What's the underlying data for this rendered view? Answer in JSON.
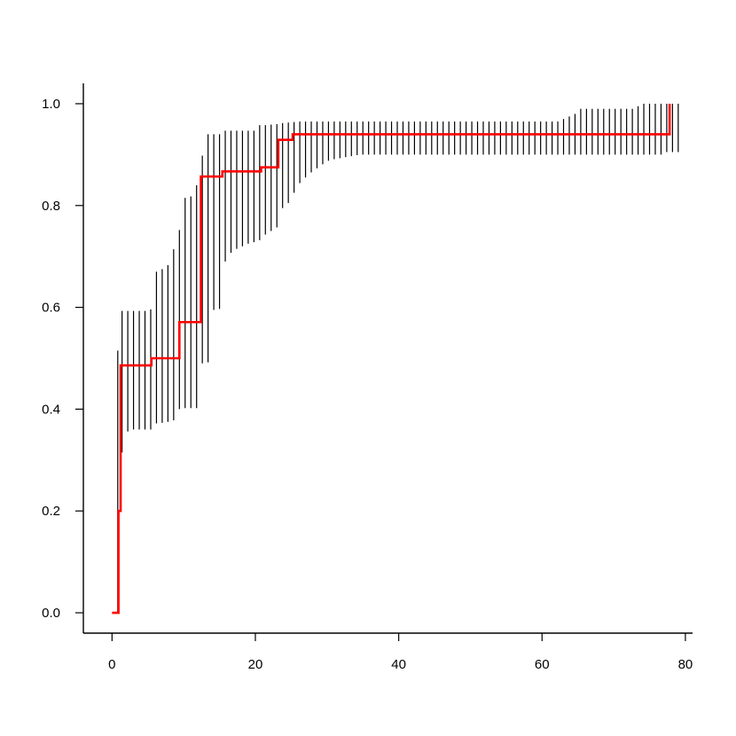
{
  "chart_data": {
    "type": "line",
    "title": "",
    "xlabel": "",
    "ylabel": "",
    "xlim": [
      -4,
      81
    ],
    "ylim": [
      -0.04,
      1.04
    ],
    "grid": false,
    "legend": "none",
    "x_ticks": [
      {
        "value": 0,
        "label": "0"
      },
      {
        "value": 20,
        "label": "20"
      },
      {
        "value": 40,
        "label": "40"
      },
      {
        "value": 60,
        "label": "60"
      },
      {
        "value": 80,
        "label": "80"
      }
    ],
    "y_ticks": [
      {
        "value": 0,
        "label": "0.0"
      },
      {
        "value": 0.2,
        "label": "0.2"
      },
      {
        "value": 0.4,
        "label": "0.4"
      },
      {
        "value": 0.6,
        "label": "0.6"
      },
      {
        "value": 0.8,
        "label": "0.8"
      },
      {
        "value": 1.0,
        "label": "1.0"
      }
    ],
    "step_line": {
      "color": "#ff0000",
      "x": [
        0,
        0.9,
        1.2,
        5.5,
        9.4,
        12.4,
        15.4,
        20.8,
        23.2,
        25.2,
        77.8
      ],
      "y": [
        0.0,
        0.2,
        0.486,
        0.5,
        0.571,
        0.857,
        0.867,
        0.875,
        0.929,
        0.94,
        1.0
      ],
      "x_end": 77.8
    },
    "intervals": {
      "color": "#000000",
      "lower": [
        [
          0.8,
          0.0
        ],
        [
          1.4,
          0.315
        ],
        [
          2.2,
          0.356
        ],
        [
          3.0,
          0.36
        ],
        [
          3.8,
          0.36
        ],
        [
          4.6,
          0.36
        ],
        [
          5.4,
          0.36
        ],
        [
          6.2,
          0.372
        ],
        [
          7.0,
          0.373
        ],
        [
          7.8,
          0.375
        ],
        [
          8.6,
          0.378
        ],
        [
          9.4,
          0.4
        ],
        [
          10.2,
          0.402
        ],
        [
          11.0,
          0.402
        ],
        [
          11.8,
          0.402
        ],
        [
          12.6,
          0.49
        ],
        [
          13.4,
          0.492
        ],
        [
          14.2,
          0.595
        ],
        [
          15.0,
          0.597
        ],
        [
          15.8,
          0.69
        ],
        [
          16.6,
          0.707
        ],
        [
          17.4,
          0.715
        ],
        [
          18.2,
          0.72
        ],
        [
          19.0,
          0.725
        ],
        [
          19.8,
          0.728
        ],
        [
          20.6,
          0.732
        ],
        [
          21.4,
          0.743
        ],
        [
          22.2,
          0.75
        ],
        [
          23.0,
          0.757
        ],
        [
          23.8,
          0.795
        ],
        [
          24.6,
          0.805
        ],
        [
          25.4,
          0.825
        ],
        [
          26.2,
          0.844
        ],
        [
          27.0,
          0.855
        ],
        [
          27.8,
          0.865
        ],
        [
          28.6,
          0.873
        ],
        [
          29.4,
          0.881
        ],
        [
          30.2,
          0.888
        ],
        [
          31.0,
          0.891
        ],
        [
          31.8,
          0.893
        ],
        [
          32.6,
          0.895
        ],
        [
          33.4,
          0.897
        ],
        [
          34.2,
          0.899
        ],
        [
          35.0,
          0.9
        ],
        [
          35.8,
          0.9
        ],
        [
          36.6,
          0.9
        ],
        [
          37.4,
          0.9
        ],
        [
          38.2,
          0.9
        ],
        [
          39.0,
          0.9
        ],
        [
          39.8,
          0.9
        ],
        [
          40.6,
          0.9
        ],
        [
          41.4,
          0.9
        ],
        [
          42.2,
          0.9
        ],
        [
          43.0,
          0.9
        ],
        [
          43.8,
          0.9
        ],
        [
          44.6,
          0.9
        ],
        [
          45.4,
          0.9
        ],
        [
          46.2,
          0.9
        ],
        [
          47.0,
          0.9
        ],
        [
          47.8,
          0.9
        ],
        [
          48.6,
          0.9
        ],
        [
          49.4,
          0.9
        ],
        [
          50.2,
          0.9
        ],
        [
          51.0,
          0.9
        ],
        [
          51.8,
          0.9
        ],
        [
          52.6,
          0.9
        ],
        [
          53.4,
          0.9
        ],
        [
          54.2,
          0.9
        ],
        [
          55.0,
          0.9
        ],
        [
          55.8,
          0.9
        ],
        [
          56.6,
          0.9
        ],
        [
          57.4,
          0.9
        ],
        [
          58.2,
          0.9
        ],
        [
          59.0,
          0.9
        ],
        [
          59.8,
          0.9
        ],
        [
          60.6,
          0.9
        ],
        [
          61.4,
          0.9
        ],
        [
          62.2,
          0.9
        ],
        [
          63.0,
          0.9
        ],
        [
          63.8,
          0.9
        ],
        [
          64.6,
          0.9
        ],
        [
          65.4,
          0.9
        ],
        [
          66.2,
          0.9
        ],
        [
          67.0,
          0.9
        ],
        [
          67.8,
          0.9
        ],
        [
          68.6,
          0.9
        ],
        [
          69.4,
          0.9
        ],
        [
          70.2,
          0.9
        ],
        [
          71.0,
          0.9
        ],
        [
          71.8,
          0.9
        ],
        [
          72.6,
          0.9
        ],
        [
          73.4,
          0.9
        ],
        [
          74.2,
          0.9
        ],
        [
          75.0,
          0.9
        ],
        [
          75.8,
          0.9
        ],
        [
          76.6,
          0.9
        ],
        [
          77.4,
          0.905
        ],
        [
          78.2,
          0.905
        ],
        [
          79.0,
          0.905
        ]
      ],
      "upper": [
        [
          0.8,
          0.515
        ],
        [
          1.4,
          0.593
        ],
        [
          2.2,
          0.593
        ],
        [
          3.0,
          0.593
        ],
        [
          3.8,
          0.593
        ],
        [
          4.6,
          0.593
        ],
        [
          5.4,
          0.596
        ],
        [
          6.2,
          0.67
        ],
        [
          7.0,
          0.675
        ],
        [
          7.8,
          0.683
        ],
        [
          8.6,
          0.714
        ],
        [
          9.4,
          0.752
        ],
        [
          10.2,
          0.815
        ],
        [
          11.0,
          0.818
        ],
        [
          11.8,
          0.84
        ],
        [
          12.6,
          0.898
        ],
        [
          13.4,
          0.94
        ],
        [
          14.2,
          0.94
        ],
        [
          15.0,
          0.94
        ],
        [
          15.8,
          0.947
        ],
        [
          16.6,
          0.947
        ],
        [
          17.4,
          0.947
        ],
        [
          18.2,
          0.947
        ],
        [
          19.0,
          0.947
        ],
        [
          19.8,
          0.947
        ],
        [
          20.6,
          0.958
        ],
        [
          21.4,
          0.958
        ],
        [
          22.2,
          0.959
        ],
        [
          23.0,
          0.96
        ],
        [
          23.8,
          0.962
        ],
        [
          24.6,
          0.963
        ],
        [
          25.4,
          0.964
        ],
        [
          26.2,
          0.965
        ],
        [
          27.0,
          0.965
        ],
        [
          27.8,
          0.965
        ],
        [
          28.6,
          0.965
        ],
        [
          29.4,
          0.965
        ],
        [
          30.2,
          0.965
        ],
        [
          31.0,
          0.965
        ],
        [
          31.8,
          0.965
        ],
        [
          32.6,
          0.965
        ],
        [
          33.4,
          0.965
        ],
        [
          34.2,
          0.965
        ],
        [
          35.0,
          0.965
        ],
        [
          35.8,
          0.965
        ],
        [
          36.6,
          0.965
        ],
        [
          37.4,
          0.965
        ],
        [
          38.2,
          0.965
        ],
        [
          39.0,
          0.965
        ],
        [
          39.8,
          0.965
        ],
        [
          40.6,
          0.965
        ],
        [
          41.4,
          0.965
        ],
        [
          42.2,
          0.965
        ],
        [
          43.0,
          0.965
        ],
        [
          43.8,
          0.965
        ],
        [
          44.6,
          0.965
        ],
        [
          45.4,
          0.965
        ],
        [
          46.2,
          0.965
        ],
        [
          47.0,
          0.965
        ],
        [
          47.8,
          0.965
        ],
        [
          48.6,
          0.965
        ],
        [
          49.4,
          0.965
        ],
        [
          50.2,
          0.965
        ],
        [
          51.0,
          0.965
        ],
        [
          51.8,
          0.965
        ],
        [
          52.6,
          0.965
        ],
        [
          53.4,
          0.965
        ],
        [
          54.2,
          0.965
        ],
        [
          55.0,
          0.965
        ],
        [
          55.8,
          0.965
        ],
        [
          56.6,
          0.965
        ],
        [
          57.4,
          0.965
        ],
        [
          58.2,
          0.965
        ],
        [
          59.0,
          0.965
        ],
        [
          59.8,
          0.965
        ],
        [
          60.6,
          0.965
        ],
        [
          61.4,
          0.965
        ],
        [
          62.2,
          0.965
        ],
        [
          63.0,
          0.97
        ],
        [
          63.8,
          0.975
        ],
        [
          64.6,
          0.98
        ],
        [
          65.4,
          0.99
        ],
        [
          66.2,
          0.99
        ],
        [
          67.0,
          0.99
        ],
        [
          67.8,
          0.99
        ],
        [
          68.6,
          0.99
        ],
        [
          69.4,
          0.99
        ],
        [
          70.2,
          0.99
        ],
        [
          71.0,
          0.99
        ],
        [
          71.8,
          0.99
        ],
        [
          72.6,
          0.99
        ],
        [
          73.4,
          0.995
        ],
        [
          74.2,
          1.0
        ],
        [
          75.0,
          1.0
        ],
        [
          75.8,
          1.0
        ],
        [
          76.6,
          1.0
        ],
        [
          77.4,
          1.0
        ],
        [
          78.2,
          1.0
        ],
        [
          79.0,
          1.0
        ]
      ]
    }
  }
}
